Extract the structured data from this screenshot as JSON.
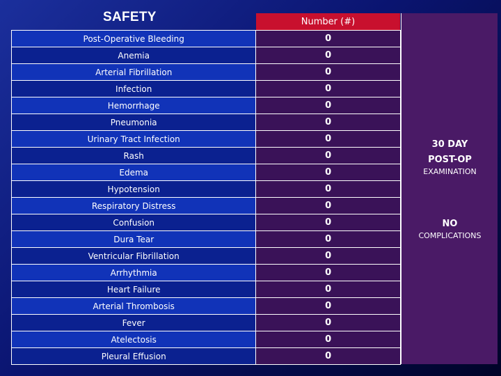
{
  "title": "SAFETY",
  "column_header": "Number (#)",
  "rows": [
    {
      "label": "Post-Operative Bleeding",
      "value": "0"
    },
    {
      "label": "Anemia",
      "value": "0"
    },
    {
      "label": "Arterial Fibrillation",
      "value": "0"
    },
    {
      "label": "Infection",
      "value": "0"
    },
    {
      "label": "Hemorrhage",
      "value": "0"
    },
    {
      "label": "Pneumonia",
      "value": "0"
    },
    {
      "label": "Urinary Tract Infection",
      "value": "0"
    },
    {
      "label": "Rash",
      "value": "0"
    },
    {
      "label": "Edema",
      "value": "0"
    },
    {
      "label": "Hypotension",
      "value": "0"
    },
    {
      "label": "Respiratory Distress",
      "value": "0"
    },
    {
      "label": "Confusion",
      "value": "0"
    },
    {
      "label": "Dura Tear",
      "value": "0"
    },
    {
      "label": "Ventricular Fibrillation",
      "value": "0"
    },
    {
      "label": "Arrhythmia",
      "value": "0"
    },
    {
      "label": "Heart Failure",
      "value": "0"
    },
    {
      "label": "Arterial Thrombosis",
      "value": "0"
    },
    {
      "label": "Fever",
      "value": "0"
    },
    {
      "label": "Atelectosis",
      "value": "0"
    },
    {
      "label": "Pleural Effusion",
      "value": "0"
    }
  ],
  "side_panel": {
    "line1": "30 DAY",
    "line2": "POST-OP",
    "line3": "EXAMINATION",
    "line4": "NO",
    "line5": "COMPLICATIONS"
  },
  "colors": {
    "header_red": "#c8102e",
    "panel_purple": "#4a1a66",
    "row_blue_light": "#1133b8",
    "row_blue_dark": "#0b2190"
  }
}
